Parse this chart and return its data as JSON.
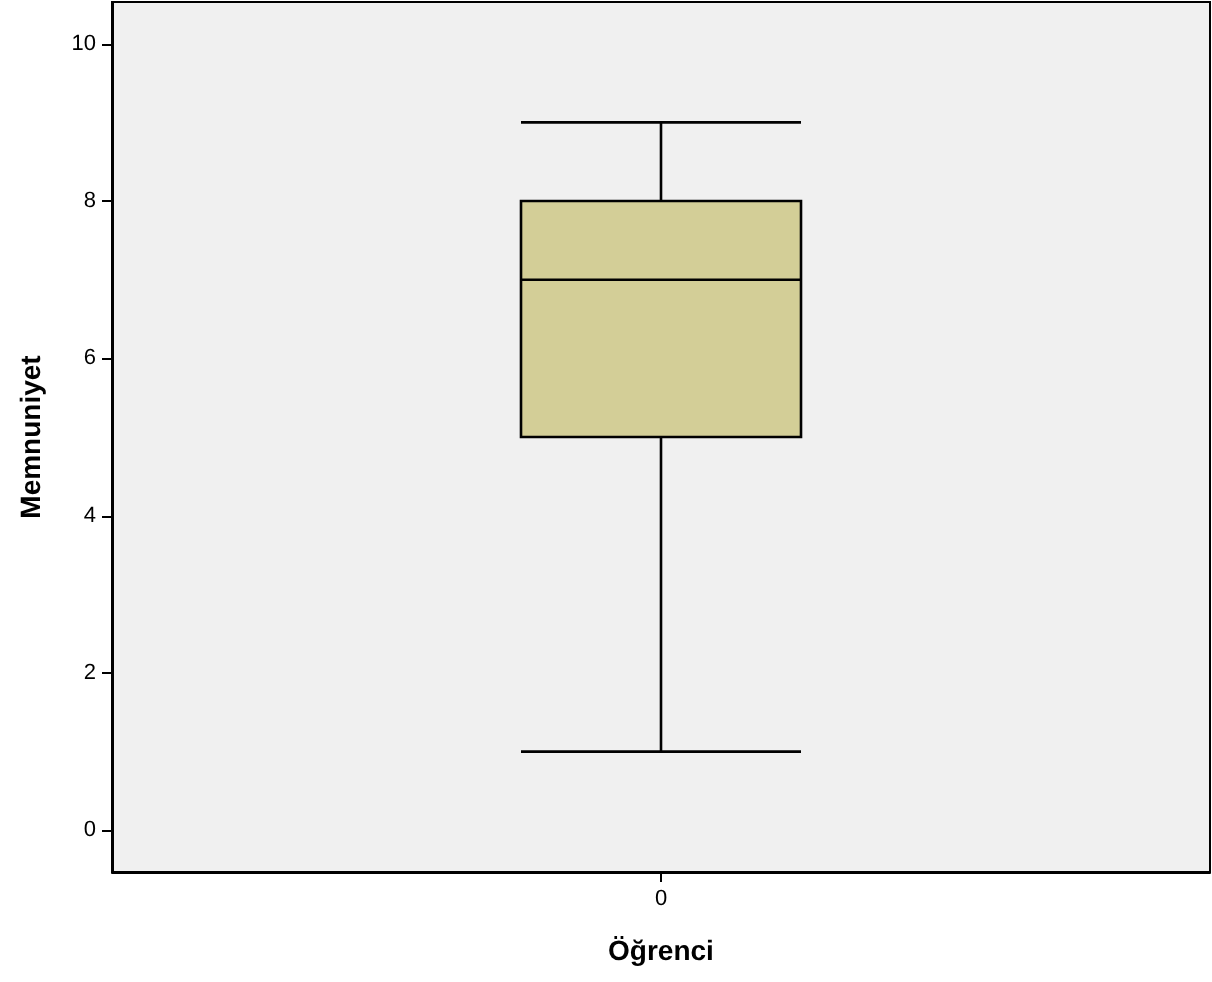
{
  "chart_data": {
    "type": "box",
    "xlabel": "Öğrenci",
    "ylabel": "Memnuniyet",
    "categories": [
      "0"
    ],
    "boxes": [
      {
        "low": 1,
        "q1": 5,
        "median": 7,
        "q3": 8,
        "high": 9
      }
    ],
    "color": "#d3ce97",
    "ylim": [
      -0.53,
      10.53
    ],
    "yticks": [
      0,
      2,
      4,
      6,
      8,
      10
    ],
    "grid": false
  }
}
